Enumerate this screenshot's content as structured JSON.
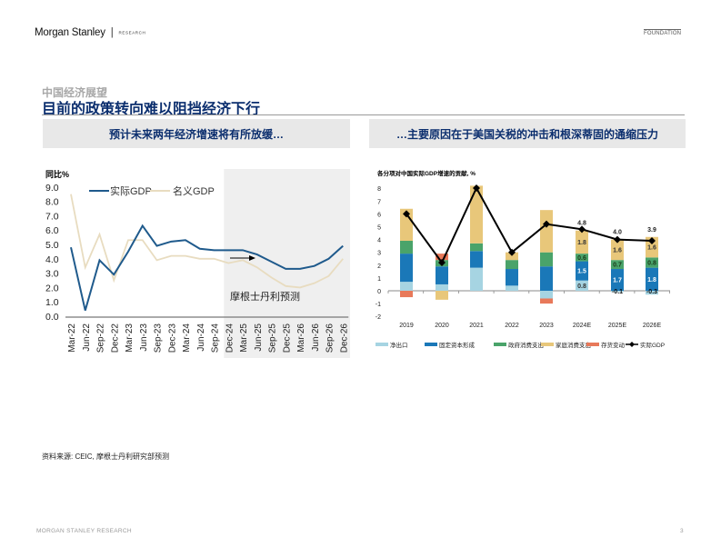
{
  "header": {
    "brand": "Morgan Stanley",
    "separator": "|",
    "brand_sub": "RESEARCH",
    "section_tag": "FOUNDATION"
  },
  "page": {
    "kicker": "中国经济展望",
    "title": "目前的政策转向难以阻挡经济下行",
    "left_banner": "预计未来两年经济增速将有所放缓…",
    "right_banner": "…主要原因在于美国关税的冲击和根深蒂固的通缩压力",
    "source": "资料来源: CEIC, 摩根士丹利研究部预测"
  },
  "footer": {
    "left": "MORGAN STANLEY RESEARCH",
    "page_number": "3"
  },
  "colors": {
    "title_navy": "#0b2e6e",
    "real_gdp": "#1f5a8c",
    "nominal_gdp": "#e8dcc0",
    "forecast_shade": "#efefef",
    "net_exports": "#a6d4e2",
    "fixed_capital": "#1a78b8",
    "gov_consumption": "#4aa36a",
    "household_consumption": "#e8c77a",
    "inventory": "#e8795a",
    "real_gdp_line": "#000000"
  },
  "chart_data": [
    {
      "type": "line",
      "title": "",
      "ylabel": "同比%",
      "xlabel": "",
      "ylim": [
        0,
        9
      ],
      "yticks": [
        "0.0",
        "1.0",
        "2.0",
        "3.0",
        "4.0",
        "5.0",
        "6.0",
        "7.0",
        "8.0",
        "9.0"
      ],
      "grid": false,
      "legend_position": "top",
      "categories": [
        "Mar-22",
        "Jun-22",
        "Sep-22",
        "Dec-22",
        "Mar-23",
        "Jun-23",
        "Sep-23",
        "Dec-23",
        "Mar-24",
        "Jun-24",
        "Sep-24",
        "Dec-24",
        "Mar-25",
        "Jun-25",
        "Sep-25",
        "Dec-25",
        "Mar-26",
        "Jun-26",
        "Sep-26",
        "Dec-26"
      ],
      "series": [
        {
          "name": "实际GDP",
          "values": [
            4.8,
            0.4,
            3.9,
            2.9,
            4.5,
            6.3,
            4.9,
            5.2,
            5.3,
            4.7,
            4.6,
            4.6,
            4.6,
            4.3,
            3.8,
            3.3,
            3.3,
            3.5,
            4.0,
            4.9
          ]
        },
        {
          "name": "名义GDP",
          "values": [
            8.5,
            3.4,
            5.7,
            2.5,
            5.3,
            5.3,
            3.9,
            4.2,
            4.2,
            4.0,
            4.0,
            3.7,
            3.9,
            3.4,
            2.7,
            2.1,
            2.0,
            2.3,
            2.8,
            4.0
          ]
        }
      ],
      "annotation": "摩根士丹利预测",
      "forecast_start": "Dec-24"
    },
    {
      "type": "bar",
      "stacked": true,
      "title": "各分项对中国实际GDP增速的贡献, %",
      "xlabel": "",
      "ylabel": "",
      "ylim": [
        -2,
        8
      ],
      "yticks": [
        "-2",
        "-1",
        "0",
        "1",
        "2",
        "3",
        "4",
        "5",
        "6",
        "7",
        "8"
      ],
      "grid": false,
      "legend_position": "bottom",
      "categories": [
        "2019",
        "2020",
        "2021",
        "2022",
        "2023",
        "2024E",
        "2025E",
        "2026E"
      ],
      "series": [
        {
          "name": "净出口",
          "values": [
            0.7,
            0.5,
            1.8,
            0.4,
            -0.6,
            0.8,
            -0.1,
            -0.3
          ]
        },
        {
          "name": "固定资本形成",
          "values": [
            2.2,
            1.4,
            1.3,
            1.3,
            1.9,
            1.5,
            1.7,
            1.8
          ]
        },
        {
          "name": "政府消费支出",
          "values": [
            1.0,
            0.5,
            0.6,
            0.7,
            1.1,
            0.6,
            0.7,
            0.8
          ]
        },
        {
          "name": "家庭消费支出",
          "values": [
            2.5,
            -0.7,
            4.5,
            0.6,
            3.3,
            1.8,
            1.6,
            1.6
          ]
        },
        {
          "name": "存货变动",
          "values": [
            -0.5,
            0.5,
            0.0,
            0.0,
            -0.4,
            0.0,
            0.0,
            0.0
          ]
        },
        {
          "name": "实际GDP",
          "type": "line",
          "values": [
            6.0,
            2.2,
            8.4,
            3.0,
            5.2,
            4.8,
            4.0,
            3.9
          ]
        }
      ],
      "data_labels": {
        "2024E": {
          "total": "4.8",
          "家庭消费支出": "1.8",
          "政府消费支出": "0.6",
          "固定资本形成": "1.5",
          "净出口": "0.8"
        },
        "2025E": {
          "total": "4.0",
          "家庭消费支出": "1.6",
          "政府消费支出": "0.7",
          "固定资本形成": "1.7",
          "净出口": "-0.1"
        },
        "2026E": {
          "total": "3.9",
          "家庭消费支出": "1.6",
          "政府消费支出": "0.8",
          "固定资本形成": "1.8",
          "净出口": "-0.3"
        }
      }
    }
  ]
}
